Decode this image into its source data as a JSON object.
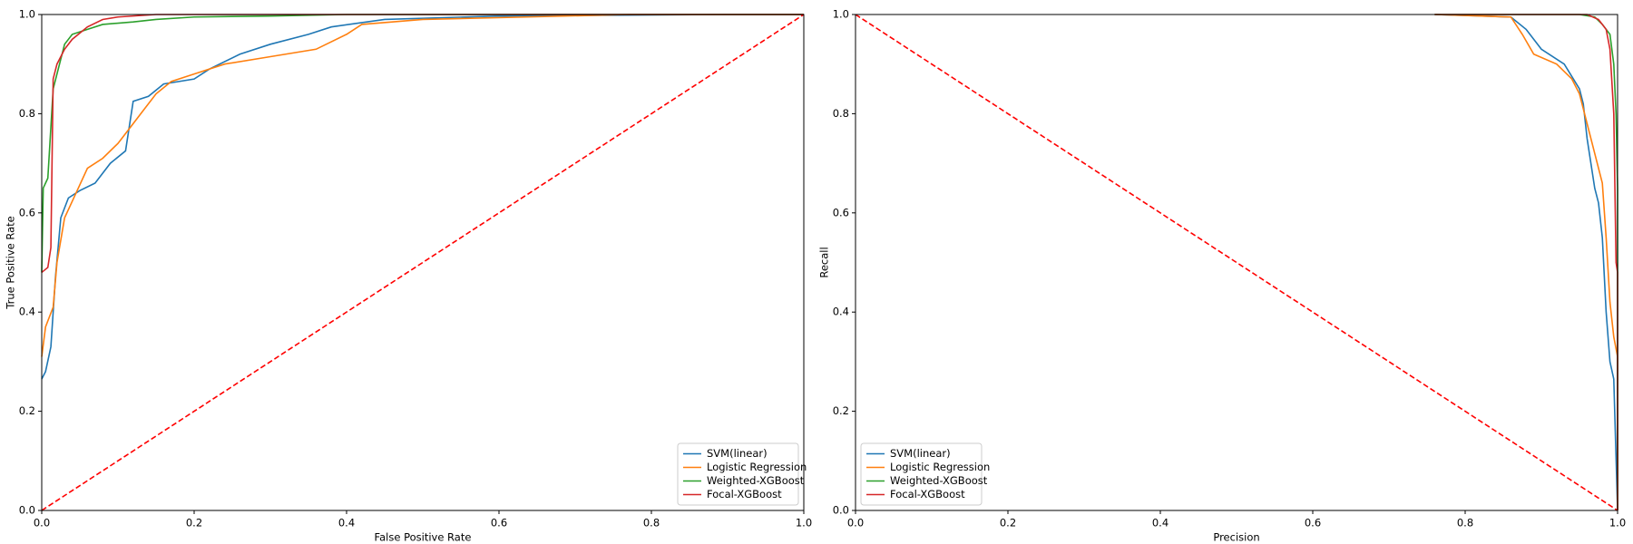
{
  "chart_data": [
    {
      "type": "line",
      "xlabel": "False Positive Rate",
      "ylabel": "True Positive Rate",
      "xlim": [
        0,
        1
      ],
      "ylim": [
        0,
        1
      ],
      "xticks": [
        {
          "value": 0,
          "label": "0.0"
        },
        0.2,
        0.4,
        0.6,
        0.8,
        {
          "value": 1,
          "label": "1.0"
        }
      ],
      "yticks": [
        {
          "value": 0,
          "label": "0.0"
        },
        0.2,
        0.4,
        0.6,
        0.8,
        {
          "value": 1,
          "label": "1.0"
        }
      ],
      "legend": "lower right",
      "series": [
        {
          "name": "SVM(linear)",
          "color": "#1f77b4",
          "x": [
            0,
            0.005,
            0.012,
            0.018,
            0.025,
            0.035,
            0.05,
            0.07,
            0.09,
            0.11,
            0.12,
            0.14,
            0.16,
            0.2,
            0.22,
            0.26,
            0.3,
            0.35,
            0.38,
            0.45,
            0.6,
            0.9,
            1
          ],
          "values": [
            0.265,
            0.28,
            0.33,
            0.47,
            0.59,
            0.63,
            0.645,
            0.66,
            0.7,
            0.725,
            0.825,
            0.835,
            0.86,
            0.87,
            0.89,
            0.92,
            0.94,
            0.96,
            0.975,
            0.99,
            0.997,
            1,
            1
          ]
        },
        {
          "name": "Logistic Regression",
          "color": "#ff7f0e",
          "x": [
            0,
            0.005,
            0.015,
            0.02,
            0.03,
            0.045,
            0.06,
            0.08,
            0.1,
            0.12,
            0.13,
            0.15,
            0.17,
            0.2,
            0.24,
            0.3,
            0.36,
            0.4,
            0.42,
            0.5,
            0.77,
            1
          ],
          "values": [
            0.31,
            0.37,
            0.41,
            0.5,
            0.59,
            0.64,
            0.69,
            0.71,
            0.74,
            0.78,
            0.8,
            0.84,
            0.865,
            0.88,
            0.9,
            0.915,
            0.93,
            0.96,
            0.98,
            0.99,
            1,
            1
          ]
        },
        {
          "name": "Weighted-XGBoost",
          "color": "#2ca02c",
          "x": [
            0,
            0.002,
            0.008,
            0.015,
            0.02,
            0.03,
            0.04,
            0.06,
            0.08,
            0.12,
            0.15,
            0.2,
            0.3,
            0.4,
            1
          ],
          "values": [
            0.48,
            0.65,
            0.67,
            0.85,
            0.88,
            0.94,
            0.96,
            0.97,
            0.98,
            0.985,
            0.99,
            0.995,
            0.997,
            1,
            1
          ]
        },
        {
          "name": "Focal-XGBoost",
          "color": "#d62728",
          "x": [
            0,
            0.008,
            0.012,
            0.015,
            0.02,
            0.03,
            0.04,
            0.06,
            0.08,
            0.1,
            0.15,
            1
          ],
          "values": [
            0.48,
            0.49,
            0.53,
            0.87,
            0.9,
            0.93,
            0.95,
            0.975,
            0.99,
            0.995,
            1,
            1
          ]
        },
        {
          "color": "#ff0000",
          "dashed": true,
          "x": [
            0,
            1
          ],
          "values": [
            0,
            1
          ]
        }
      ]
    },
    {
      "type": "line",
      "xlabel": "Precision",
      "ylabel": "Recall",
      "xlim": [
        0,
        1
      ],
      "ylim": [
        0,
        1
      ],
      "xticks": [
        {
          "value": 0,
          "label": "0.0"
        },
        0.2,
        0.4,
        0.6,
        0.8,
        {
          "value": 1,
          "label": "1.0"
        }
      ],
      "yticks": [
        {
          "value": 0,
          "label": "0.0"
        },
        0.2,
        0.4,
        0.6,
        0.8,
        {
          "value": 1,
          "label": "1.0"
        }
      ],
      "legend": "lower left",
      "series": [
        {
          "name": "SVM(linear)",
          "color": "#1f77b4",
          "x": [
            0.76,
            0.86,
            0.88,
            0.9,
            0.93,
            0.95,
            0.955,
            0.96,
            0.965,
            0.97,
            0.975,
            0.98,
            0.985,
            0.99,
            0.995,
            1
          ],
          "values": [
            1,
            0.995,
            0.97,
            0.93,
            0.9,
            0.85,
            0.82,
            0.75,
            0.7,
            0.65,
            0.62,
            0.55,
            0.4,
            0.3,
            0.265,
            0
          ]
        },
        {
          "name": "Logistic Regression",
          "color": "#ff7f0e",
          "x": [
            0.76,
            0.86,
            0.875,
            0.89,
            0.92,
            0.94,
            0.95,
            0.96,
            0.97,
            0.98,
            0.985,
            0.99,
            0.995,
            1,
            1
          ],
          "values": [
            1,
            0.995,
            0.96,
            0.92,
            0.9,
            0.87,
            0.84,
            0.78,
            0.72,
            0.66,
            0.55,
            0.42,
            0.35,
            0.31,
            0
          ]
        },
        {
          "name": "Weighted-XGBoost",
          "color": "#2ca02c",
          "x": [
            0.76,
            0.95,
            0.97,
            0.98,
            0.99,
            0.995,
            0.998,
            1,
            1
          ],
          "values": [
            1,
            1,
            0.995,
            0.98,
            0.96,
            0.9,
            0.8,
            0.65,
            0
          ]
        },
        {
          "name": "Focal-XGBoost",
          "color": "#d62728",
          "x": [
            0.76,
            0.96,
            0.975,
            0.985,
            0.99,
            0.995,
            0.997,
            0.998,
            1,
            1
          ],
          "values": [
            1,
            1,
            0.99,
            0.97,
            0.93,
            0.8,
            0.6,
            0.5,
            0.48,
            0
          ]
        },
        {
          "color": "#ff0000",
          "dashed": true,
          "x": [
            0,
            1
          ],
          "values": [
            1,
            0
          ]
        }
      ]
    }
  ]
}
